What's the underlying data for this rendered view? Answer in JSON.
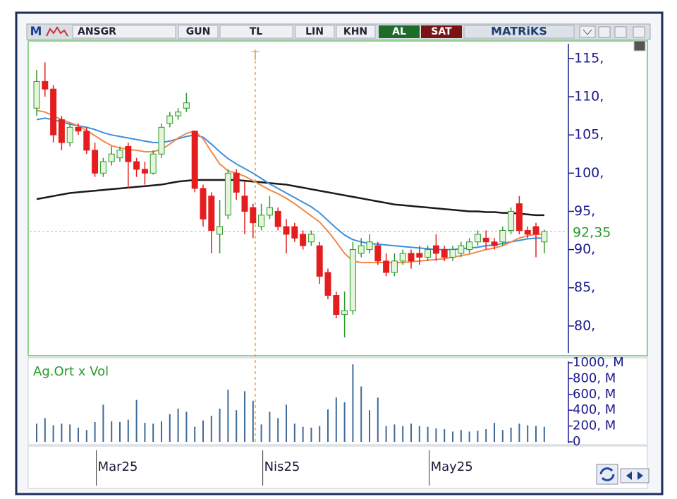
{
  "toolbar": {
    "logo": "M",
    "symbol": "ANSGR",
    "buttons": [
      "GUN",
      "TL",
      "LIN",
      "KHN"
    ],
    "buy": "AL",
    "sell": "SAT",
    "brand": "MATRiKS"
  },
  "chart_data": [
    {
      "type": "candlestick",
      "annotation": "T",
      "categories": [
        null,
        null,
        null,
        null,
        null,
        null,
        null,
        "Mar25",
        null,
        null,
        null,
        null,
        null,
        null,
        null,
        null,
        null,
        null,
        null,
        null,
        null,
        null,
        null,
        null,
        null,
        null,
        null,
        "Nis25",
        null,
        null,
        null,
        null,
        null,
        null,
        null,
        null,
        null,
        null,
        null,
        null,
        null,
        null,
        null,
        null,
        null,
        null,
        null,
        "May25",
        null,
        null,
        null,
        null,
        null,
        null,
        null,
        null,
        null,
        null,
        null,
        null,
        null,
        null
      ],
      "open": [
        108.5,
        112,
        111,
        107,
        104,
        106,
        105.5,
        103,
        100,
        101.5,
        102,
        103.5,
        101.5,
        100.5,
        100,
        102.5,
        106.5,
        107.5,
        108.5,
        105.5,
        98,
        97,
        92,
        94.5,
        100,
        97,
        95.5,
        93,
        94.5,
        95,
        93,
        93,
        92,
        91,
        90.5,
        87,
        84,
        81.5,
        82,
        89.5,
        90,
        90.5,
        88.5,
        87,
        88.5,
        89.5,
        89.5,
        89,
        90.5,
        90,
        89,
        89.5,
        90,
        91,
        91.5,
        91,
        91,
        92.5,
        96,
        92.5,
        93,
        91
      ],
      "high": [
        113.5,
        114.5,
        111.5,
        107.5,
        106.5,
        106.5,
        106,
        104,
        102,
        103.5,
        103.5,
        104,
        102,
        101.5,
        103,
        106.5,
        108,
        108.5,
        110.5,
        105.5,
        98.5,
        97.5,
        96.5,
        100.5,
        100.5,
        99,
        96,
        96,
        97,
        95.5,
        94,
        93.5,
        92.5,
        92.5,
        91,
        87.5,
        84.5,
        84.5,
        91,
        91.5,
        92,
        91,
        89.5,
        89.5,
        90,
        90,
        90.5,
        90.5,
        92,
        90.5,
        90.5,
        91,
        91.5,
        92.5,
        92.5,
        91.5,
        93,
        95.5,
        97,
        93,
        93.5,
        92.6
      ],
      "low": [
        107.5,
        110,
        104,
        103,
        103.5,
        105,
        102.5,
        99.5,
        99.5,
        101,
        101.5,
        98,
        99.5,
        98.5,
        99.8,
        102,
        106,
        107,
        108,
        97.5,
        93,
        89.5,
        89.5,
        94,
        96.5,
        92,
        91.5,
        92.5,
        94,
        92.5,
        89.5,
        91,
        90,
        90.5,
        85.5,
        83.5,
        81,
        78.5,
        81.5,
        89,
        89.5,
        88,
        86.5,
        86.5,
        88,
        87.5,
        88,
        88.5,
        88.5,
        88.5,
        88.5,
        89,
        89.5,
        90.5,
        90,
        90,
        90.5,
        92,
        92,
        91.5,
        89,
        89.5
      ],
      "close": [
        112,
        111,
        105,
        104,
        106,
        105.5,
        103,
        100,
        101.5,
        102.5,
        103,
        101.5,
        100.5,
        100,
        102.5,
        106,
        107.5,
        108,
        109.2,
        98,
        94,
        92.5,
        93,
        100,
        97.5,
        95,
        93.5,
        94.5,
        95.5,
        93,
        92,
        91.5,
        90.5,
        92,
        86.5,
        84,
        81.5,
        82,
        90,
        90.5,
        91,
        88.5,
        87,
        88.5,
        89.5,
        88.5,
        89,
        90,
        89.5,
        89,
        90,
        90.5,
        91,
        92,
        91,
        90.5,
        92.5,
        95,
        92.5,
        92,
        92,
        92.35
      ],
      "up_color": "#2e9a2e",
      "down_color": "#e41e1e",
      "series": [
        {
          "color": "#1a1a1a",
          "values": [
            96.6,
            96.8,
            97.0,
            97.2,
            97.4,
            97.5,
            97.6,
            97.7,
            97.8,
            97.9,
            98.0,
            98.1,
            98.2,
            98.3,
            98.4,
            98.5,
            98.7,
            98.9,
            99.0,
            99.1,
            99.1,
            99.1,
            99.1,
            99.1,
            99.1,
            99.0,
            98.9,
            98.8,
            98.7,
            98.6,
            98.5,
            98.3,
            98.1,
            97.9,
            97.7,
            97.5,
            97.3,
            97.1,
            96.9,
            96.7,
            96.5,
            96.3,
            96.1,
            95.9,
            95.8,
            95.7,
            95.6,
            95.5,
            95.4,
            95.3,
            95.2,
            95.1,
            95.0,
            95.0,
            94.9,
            94.9,
            94.8,
            94.8,
            94.7,
            94.6,
            94.5,
            94.5
          ]
        },
        {
          "color": "#3b8fe2",
          "values": [
            107.0,
            107.2,
            107.0,
            106.7,
            106.4,
            106.2,
            106.0,
            105.7,
            105.3,
            105.0,
            104.8,
            104.6,
            104.4,
            104.2,
            104.0,
            104.0,
            104.2,
            104.5,
            104.8,
            105.0,
            104.7,
            103.8,
            102.8,
            101.9,
            101.2,
            100.6,
            100.0,
            99.3,
            98.6,
            98.0,
            97.4,
            96.8,
            96.2,
            95.6,
            94.8,
            93.8,
            92.8,
            91.9,
            91.3,
            91.0,
            90.8,
            90.7,
            90.6,
            90.5,
            90.4,
            90.3,
            90.2,
            90.1,
            90.0,
            90.0,
            90.0,
            90.1,
            90.2,
            90.3,
            90.5,
            90.6,
            90.8,
            91.0,
            91.2,
            91.4,
            91.5,
            91.5
          ]
        },
        {
          "color": "#f0894a",
          "values": [
            108.2,
            108.0,
            107.5,
            107.0,
            106.6,
            106.2,
            105.6,
            104.9,
            104.2,
            103.6,
            103.3,
            103.1,
            103.0,
            102.8,
            102.8,
            103.1,
            103.8,
            104.6,
            105.2,
            105.5,
            104.5,
            102.8,
            101.2,
            100.3,
            100.0,
            99.6,
            99.0,
            98.4,
            97.8,
            97.3,
            96.7,
            96.0,
            95.2,
            94.4,
            93.6,
            92.4,
            91.0,
            89.5,
            88.5,
            88.3,
            88.3,
            88.3,
            88.3,
            88.3,
            88.3,
            88.4,
            88.5,
            88.6,
            88.7,
            88.8,
            89.0,
            89.2,
            89.4,
            89.7,
            90.0,
            90.2,
            90.5,
            91.0,
            91.5,
            91.8,
            92.0,
            92.0
          ]
        }
      ],
      "last_value": 92.35,
      "last_value_label": "92,35",
      "ylim": [
        76.2,
        117.3
      ],
      "yticks": [
        {
          "value": 80,
          "label": "80,"
        },
        {
          "value": 85,
          "label": "85,"
        },
        {
          "value": 90,
          "label": "90,"
        },
        {
          "value": 95,
          "label": "95,"
        },
        {
          "value": 100,
          "label": "100,"
        },
        {
          "value": 105,
          "label": "105,"
        },
        {
          "value": 110,
          "label": "110,"
        },
        {
          "value": 115,
          "label": "115,"
        }
      ]
    },
    {
      "type": "bar",
      "title": "Ag.Ort x Vol",
      "color": "#3f6a98",
      "values": [
        230,
        300,
        210,
        230,
        220,
        180,
        150,
        250,
        470,
        260,
        250,
        280,
        530,
        240,
        230,
        260,
        350,
        420,
        380,
        190,
        270,
        330,
        420,
        660,
        400,
        640,
        520,
        220,
        380,
        300,
        470,
        230,
        190,
        180,
        200,
        410,
        560,
        500,
        980,
        700,
        400,
        560,
        200,
        220,
        200,
        230,
        200,
        190,
        170,
        160,
        130,
        150,
        130,
        140,
        160,
        240,
        150,
        180,
        230,
        210,
        200,
        190
      ],
      "ylim": [
        0,
        1000
      ],
      "yticks": [
        0,
        {
          "value": 200,
          "label": "200, M"
        },
        {
          "value": 400,
          "label": "400, M"
        },
        {
          "value": 600,
          "label": "600, M"
        },
        {
          "value": 800,
          "label": "800, M"
        },
        {
          "value": 1000,
          "label": "1000, M"
        }
      ]
    }
  ]
}
